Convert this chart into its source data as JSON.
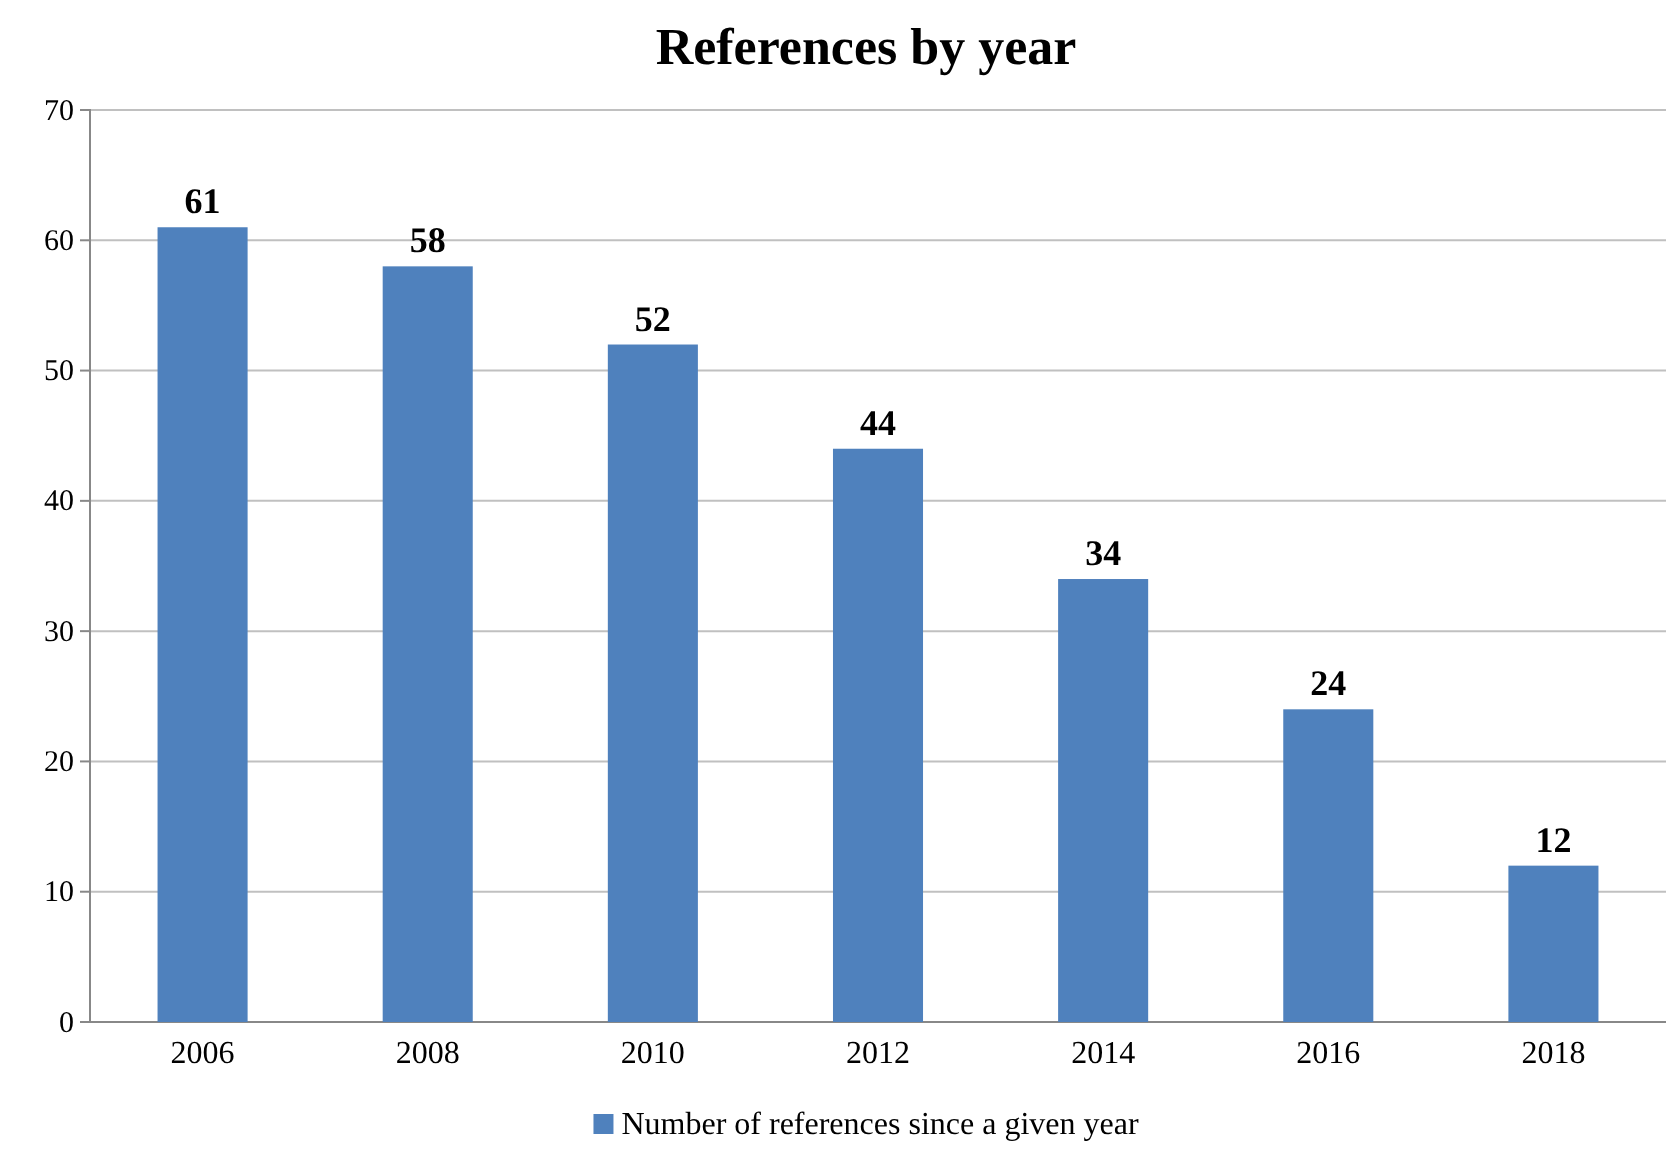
{
  "chart_data": {
    "type": "bar",
    "title": "References by year",
    "categories": [
      "2006",
      "2008",
      "2010",
      "2012",
      "2014",
      "2016",
      "2018"
    ],
    "series": [
      {
        "name": "Number of references since a given year",
        "color": "#4f81bd",
        "values": [
          61,
          58,
          52,
          44,
          34,
          24,
          12
        ]
      }
    ],
    "ylim": [
      0,
      70
    ],
    "yticks": [
      0,
      10,
      20,
      30,
      40,
      50,
      60,
      70
    ],
    "grid": "y",
    "legend": "bottom",
    "data_labels": true
  }
}
